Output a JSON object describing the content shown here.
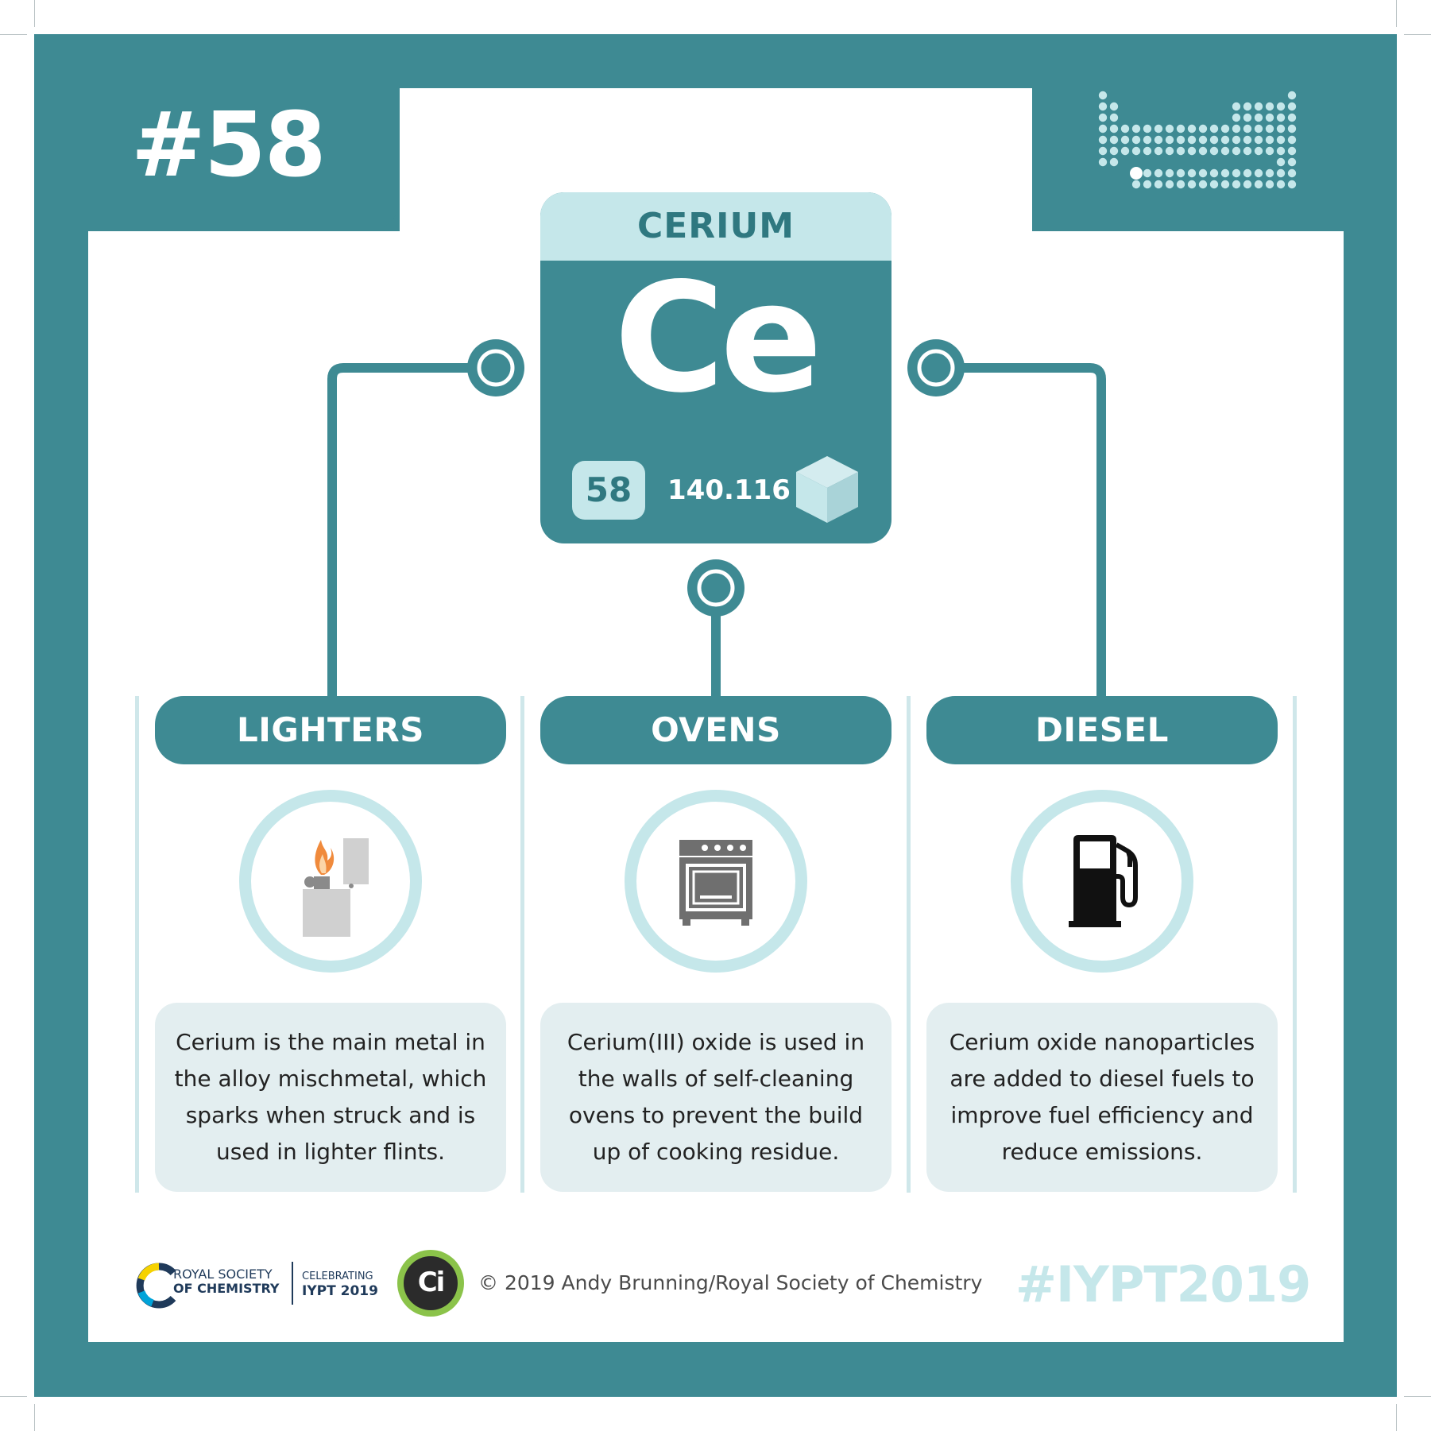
{
  "badge": {
    "number": "#58"
  },
  "element": {
    "name": "CERIUM",
    "symbol": "Ce",
    "atomic_number": "58",
    "atomic_mass": "140.116"
  },
  "uses": [
    {
      "title": "LIGHTERS",
      "icon": "lighter-icon",
      "description": "Cerium is the main metal in the alloy mischmetal, which sparks when struck and is used in lighter flints."
    },
    {
      "title": "OVENS",
      "icon": "oven-icon",
      "description": "Cerium(III) oxide is used in the walls of self-cleaning ovens to prevent the build up of cooking residue."
    },
    {
      "title": "DIESEL",
      "icon": "fuel-pump-icon",
      "description": "Cerium oxide nanoparticles are added to diesel fuels to improve fuel efficiency and reduce emissions."
    }
  ],
  "footer": {
    "rsc_line1": "ROYAL SOCIETY",
    "rsc_line2": "OF CHEMISTRY",
    "iypt_line1": "CELEBRATING",
    "iypt_line2": "IYPT 2019",
    "ci_logo": "Ci",
    "copyright": "© 2019 Andy Brunning/Royal Society of Chemistry",
    "hashtag": "#IYPT2019"
  },
  "colors": {
    "teal": "#3e8a93",
    "light_teal": "#c5e7ea",
    "desc_bg": "#e3eef0"
  }
}
